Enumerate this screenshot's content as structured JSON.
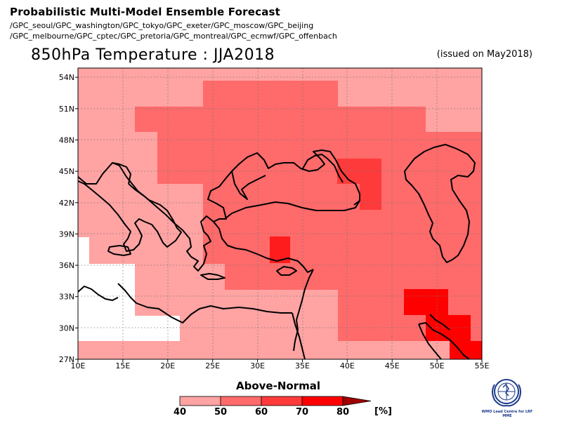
{
  "header": {
    "title": "Probabilistic Multi-Model Ensemble Forecast",
    "gpc_line1": "/GPC_seoul/GPC_washington/GPC_tokyo/GPC_exeter/GPC_moscow/GPC_beijing",
    "gpc_line2": "/GPC_melbourne/GPC_cptec/GPC_pretoria/GPC_montreal/GPC_ecmwf/GPC_offenbach"
  },
  "map": {
    "title": "850hPa Temperature : JJA2018",
    "issued": "(issued on May2018)",
    "lon_labels": [
      "10E",
      "15E",
      "20E",
      "25E",
      "30E",
      "35E",
      "40E",
      "45E",
      "50E",
      "55E"
    ],
    "lat_labels": [
      "27N",
      "30N",
      "33N",
      "36N",
      "39N",
      "42N",
      "45N",
      "48N",
      "51N",
      "54N"
    ]
  },
  "legend": {
    "title": "Above-Normal",
    "ticks": [
      "40",
      "50",
      "60",
      "70",
      "80"
    ],
    "unit": "[%]",
    "colors": [
      "#ffa3a3",
      "#ff6a6a",
      "#ff3a3a",
      "#ff0000",
      "#a00000"
    ]
  },
  "logo": {
    "name": "wmo-lead-centre-logo",
    "text": "WMO Lead Centre for LRF MME"
  }
}
